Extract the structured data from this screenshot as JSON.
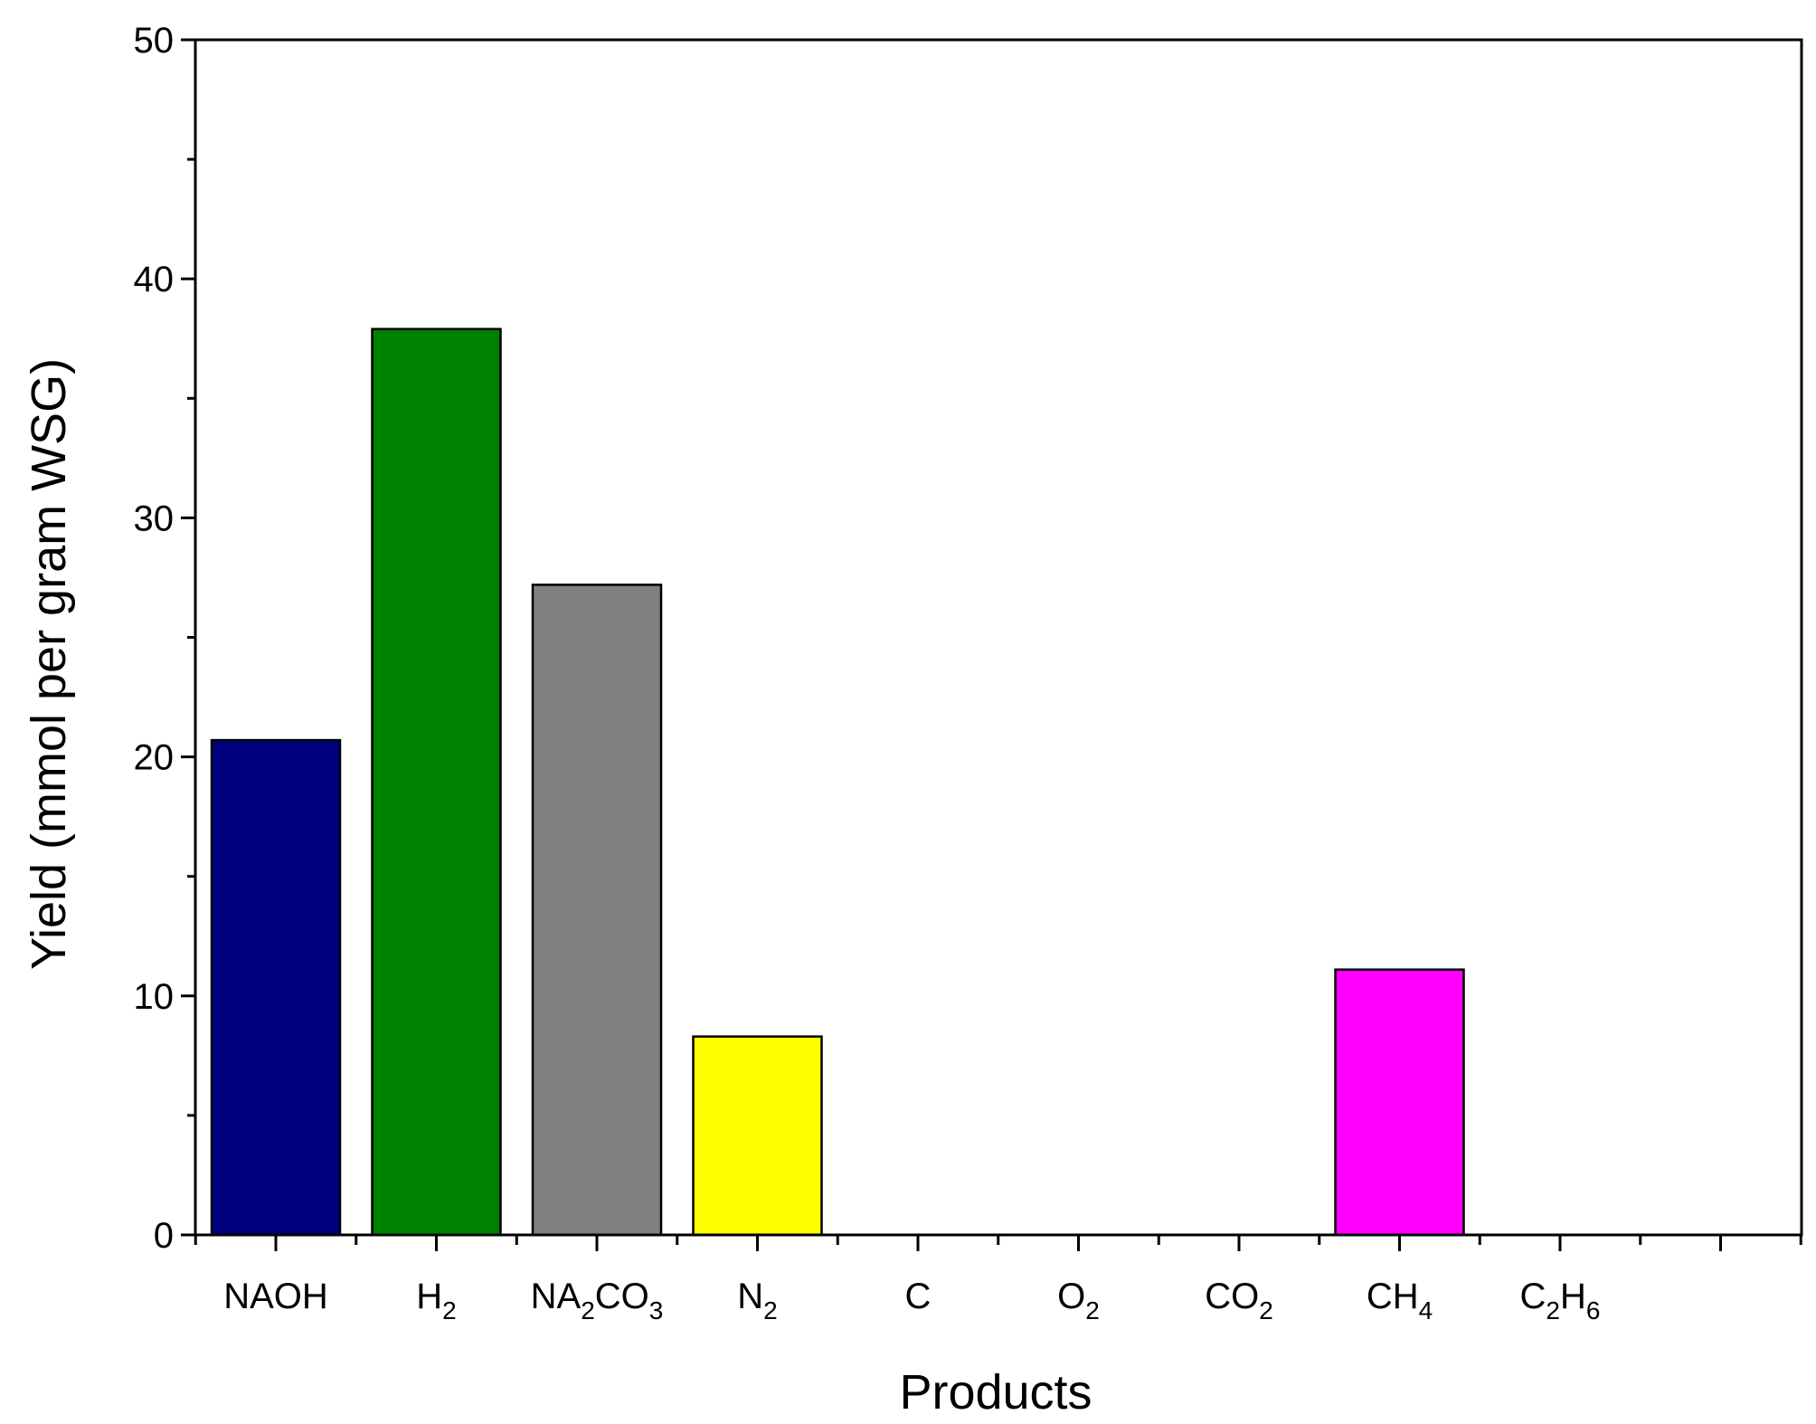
{
  "chart_data": {
    "type": "bar",
    "xlabel": "Products",
    "ylabel": "Yield (mmol per gram WSG)",
    "ylim": [
      0,
      50
    ],
    "yticks": [
      "0",
      "10",
      "20",
      "30",
      "40",
      "50"
    ],
    "categories": [
      {
        "label": "NAOH",
        "parts": [
          {
            "t": "NAOH",
            "sub": false
          }
        ]
      },
      {
        "label": "H2",
        "parts": [
          {
            "t": "H",
            "sub": false
          },
          {
            "t": "2",
            "sub": true
          }
        ]
      },
      {
        "label": "NA2CO3",
        "parts": [
          {
            "t": "NA",
            "sub": false
          },
          {
            "t": "2",
            "sub": true
          },
          {
            "t": "CO",
            "sub": false
          },
          {
            "t": "3",
            "sub": true
          }
        ]
      },
      {
        "label": "N2",
        "parts": [
          {
            "t": "N",
            "sub": false
          },
          {
            "t": "2",
            "sub": true
          }
        ]
      },
      {
        "label": "C",
        "parts": [
          {
            "t": "C",
            "sub": false
          }
        ]
      },
      {
        "label": "O2",
        "parts": [
          {
            "t": "O",
            "sub": false
          },
          {
            "t": "2",
            "sub": true
          }
        ]
      },
      {
        "label": "CO2",
        "parts": [
          {
            "t": "CO",
            "sub": false
          },
          {
            "t": "2",
            "sub": true
          }
        ]
      },
      {
        "label": "CH4",
        "parts": [
          {
            "t": "CH",
            "sub": false
          },
          {
            "t": "4",
            "sub": true
          }
        ]
      },
      {
        "label": "C2H6",
        "parts": [
          {
            "t": "C",
            "sub": false
          },
          {
            "t": "2",
            "sub": true
          },
          {
            "t": "H",
            "sub": false
          },
          {
            "t": "6",
            "sub": true
          }
        ]
      }
    ],
    "values": [
      20.7,
      37.9,
      27.2,
      8.3,
      0,
      0,
      0,
      11.1,
      0
    ],
    "colors": [
      "#000080",
      "#008000",
      "#808080",
      "#FFFF00",
      "#808080",
      "#808080",
      "#808080",
      "#FF00FF",
      "#808080"
    ],
    "grid": false,
    "legend": "none"
  }
}
